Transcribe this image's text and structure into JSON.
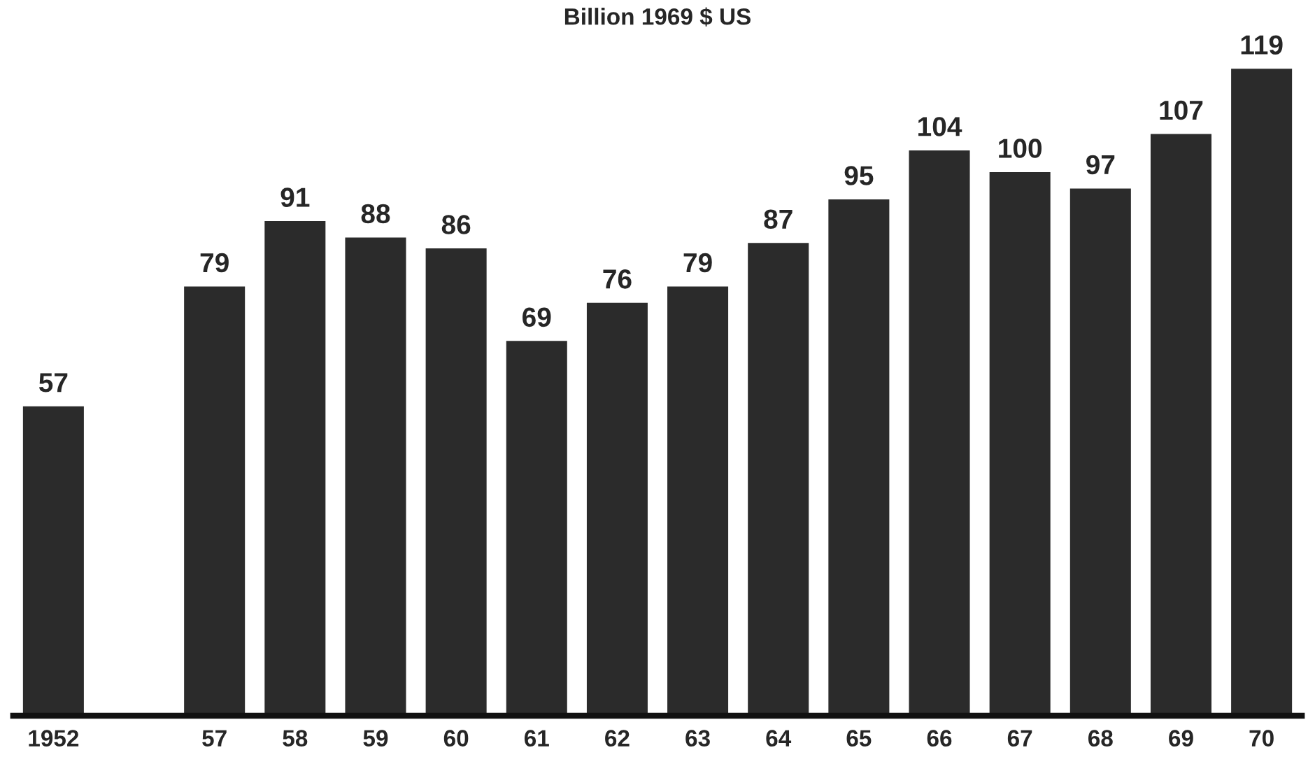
{
  "chart_data": {
    "type": "bar",
    "title": "Billion 1969 $ US",
    "categories": [
      "1952",
      null,
      "57",
      "58",
      "59",
      "60",
      "61",
      "62",
      "63",
      "64",
      "65",
      "66",
      "67",
      "68",
      "69",
      "70"
    ],
    "values": [
      57,
      null,
      79,
      91,
      88,
      86,
      69,
      76,
      79,
      87,
      95,
      104,
      100,
      97,
      107,
      119
    ],
    "color": "#2b2b2b",
    "data_labels": true,
    "ylim": [
      0,
      120
    ],
    "tick_labels": "x",
    "grid": false,
    "legend": false
  }
}
